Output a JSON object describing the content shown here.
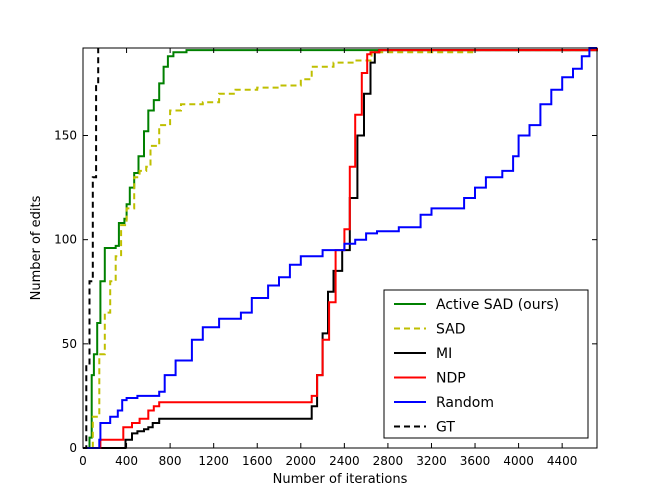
{
  "chart_data": {
    "type": "line",
    "title": "",
    "xlabel": "Number of iterations",
    "ylabel": "Number of edits",
    "xlim": [
      0,
      4720
    ],
    "ylim": [
      0,
      192
    ],
    "xticks": [
      0,
      400,
      800,
      1200,
      1600,
      2000,
      2400,
      2800,
      3200,
      3600,
      4000,
      4400
    ],
    "yticks": [
      0,
      50,
      100,
      150
    ],
    "grid": false,
    "legend_position": "lower-right",
    "series": [
      {
        "name": "Active SAD (ours)",
        "color": "#008000",
        "dash": "solid",
        "points": [
          [
            0,
            0
          ],
          [
            60,
            5
          ],
          [
            80,
            35
          ],
          [
            100,
            45
          ],
          [
            130,
            60
          ],
          [
            160,
            80
          ],
          [
            200,
            96
          ],
          [
            300,
            97
          ],
          [
            330,
            108
          ],
          [
            380,
            110
          ],
          [
            400,
            117
          ],
          [
            430,
            125
          ],
          [
            470,
            132
          ],
          [
            510,
            140
          ],
          [
            560,
            152
          ],
          [
            600,
            162
          ],
          [
            650,
            167
          ],
          [
            700,
            175
          ],
          [
            740,
            183
          ],
          [
            780,
            188
          ],
          [
            830,
            190
          ],
          [
            950,
            191
          ],
          [
            4720,
            192
          ]
        ]
      },
      {
        "name": "SAD",
        "color": "#bfbf00",
        "dash": "dashed",
        "points": [
          [
            0,
            0
          ],
          [
            90,
            15
          ],
          [
            150,
            45
          ],
          [
            200,
            65
          ],
          [
            250,
            80
          ],
          [
            300,
            92
          ],
          [
            350,
            107
          ],
          [
            400,
            115
          ],
          [
            470,
            130
          ],
          [
            520,
            133
          ],
          [
            580,
            135
          ],
          [
            620,
            145
          ],
          [
            700,
            155
          ],
          [
            800,
            162
          ],
          [
            900,
            165
          ],
          [
            1100,
            166
          ],
          [
            1250,
            170
          ],
          [
            1400,
            172
          ],
          [
            1600,
            173
          ],
          [
            1800,
            174
          ],
          [
            2000,
            177
          ],
          [
            2100,
            183
          ],
          [
            2300,
            185
          ],
          [
            2500,
            186
          ],
          [
            2650,
            190
          ],
          [
            2750,
            190
          ],
          [
            3600,
            191
          ],
          [
            4720,
            192
          ]
        ]
      },
      {
        "name": "MI",
        "color": "#000000",
        "dash": "solid",
        "points": [
          [
            0,
            0
          ],
          [
            380,
            0
          ],
          [
            390,
            4
          ],
          [
            450,
            7
          ],
          [
            500,
            8
          ],
          [
            560,
            9
          ],
          [
            600,
            10
          ],
          [
            640,
            12
          ],
          [
            700,
            14
          ],
          [
            2090,
            14
          ],
          [
            2100,
            20
          ],
          [
            2150,
            35
          ],
          [
            2200,
            55
          ],
          [
            2250,
            75
          ],
          [
            2300,
            85
          ],
          [
            2380,
            95
          ],
          [
            2450,
            120
          ],
          [
            2520,
            150
          ],
          [
            2580,
            170
          ],
          [
            2640,
            185
          ],
          [
            2680,
            190
          ],
          [
            2720,
            191
          ],
          [
            4720,
            192
          ]
        ]
      },
      {
        "name": "NDP",
        "color": "#ff0000",
        "dash": "solid",
        "points": [
          [
            0,
            0
          ],
          [
            150,
            0
          ],
          [
            160,
            4
          ],
          [
            360,
            4
          ],
          [
            370,
            10
          ],
          [
            450,
            12
          ],
          [
            520,
            14
          ],
          [
            600,
            18
          ],
          [
            650,
            20
          ],
          [
            700,
            22
          ],
          [
            2090,
            22
          ],
          [
            2100,
            25
          ],
          [
            2150,
            35
          ],
          [
            2200,
            52
          ],
          [
            2260,
            70
          ],
          [
            2320,
            95
          ],
          [
            2400,
            105
          ],
          [
            2450,
            135
          ],
          [
            2500,
            160
          ],
          [
            2560,
            180
          ],
          [
            2610,
            189
          ],
          [
            2640,
            190
          ],
          [
            2720,
            191
          ],
          [
            4720,
            192
          ]
        ]
      },
      {
        "name": "Random",
        "color": "#0000ff",
        "dash": "solid",
        "points": [
          [
            0,
            0
          ],
          [
            150,
            4
          ],
          [
            160,
            12
          ],
          [
            250,
            15
          ],
          [
            320,
            18
          ],
          [
            360,
            23
          ],
          [
            400,
            24
          ],
          [
            500,
            25
          ],
          [
            700,
            27
          ],
          [
            750,
            35
          ],
          [
            850,
            42
          ],
          [
            1000,
            52
          ],
          [
            1100,
            58
          ],
          [
            1250,
            62
          ],
          [
            1450,
            65
          ],
          [
            1550,
            72
          ],
          [
            1700,
            78
          ],
          [
            1800,
            82
          ],
          [
            1900,
            88
          ],
          [
            2000,
            92
          ],
          [
            2200,
            95
          ],
          [
            2400,
            98
          ],
          [
            2500,
            100
          ],
          [
            2600,
            103
          ],
          [
            2700,
            104
          ],
          [
            2900,
            106
          ],
          [
            3100,
            112
          ],
          [
            3200,
            115
          ],
          [
            3400,
            115
          ],
          [
            3500,
            120
          ],
          [
            3600,
            125
          ],
          [
            3700,
            130
          ],
          [
            3850,
            133
          ],
          [
            3950,
            140
          ],
          [
            4000,
            150
          ],
          [
            4100,
            155
          ],
          [
            4200,
            165
          ],
          [
            4300,
            172
          ],
          [
            4400,
            178
          ],
          [
            4500,
            182
          ],
          [
            4580,
            188
          ],
          [
            4650,
            192
          ],
          [
            4720,
            192
          ]
        ]
      },
      {
        "name": "GT",
        "color": "#000000",
        "dash": "dashed",
        "points": [
          [
            0,
            0
          ],
          [
            30,
            40
          ],
          [
            60,
            80
          ],
          [
            90,
            130
          ],
          [
            120,
            175
          ],
          [
            140,
            192
          ]
        ]
      }
    ]
  }
}
